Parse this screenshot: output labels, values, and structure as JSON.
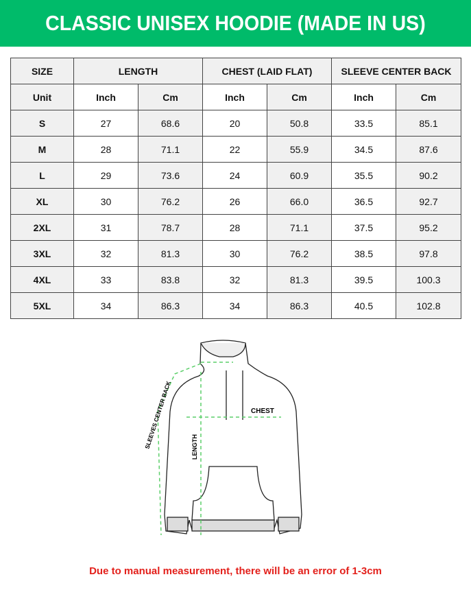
{
  "title": "CLASSIC UNISEX HOODIE (MADE IN US)",
  "colors": {
    "banner": "#00bb6a",
    "note": "#e3201b",
    "arrows": "#5ccf6a"
  },
  "table": {
    "headers": [
      "SIZE",
      "LENGTH",
      "CHEST (LAID FLAT)",
      "SLEEVE CENTER BACK"
    ],
    "units": [
      "Unit",
      "Inch",
      "Cm",
      "Inch",
      "Cm",
      "Inch",
      "Cm"
    ],
    "rows": [
      [
        "S",
        "27",
        "68.6",
        "20",
        "50.8",
        "33.5",
        "85.1"
      ],
      [
        "M",
        "28",
        "71.1",
        "22",
        "55.9",
        "34.5",
        "87.6"
      ],
      [
        "L",
        "29",
        "73.6",
        "24",
        "60.9",
        "35.5",
        "90.2"
      ],
      [
        "XL",
        "30",
        "76.2",
        "26",
        "66.0",
        "36.5",
        "92.7"
      ],
      [
        "2XL",
        "31",
        "78.7",
        "28",
        "71.1",
        "37.5",
        "95.2"
      ],
      [
        "3XL",
        "32",
        "81.3",
        "30",
        "76.2",
        "38.5",
        "97.8"
      ],
      [
        "4XL",
        "33",
        "83.8",
        "32",
        "81.3",
        "39.5",
        "100.3"
      ],
      [
        "5XL",
        "34",
        "86.3",
        "34",
        "86.3",
        "40.5",
        "102.8"
      ]
    ]
  },
  "figure": {
    "chest_label": "CHEST",
    "length_label": "LENGTH",
    "sleeve_label": "SLEEVES CENTER BACK"
  },
  "note": "Due to manual measurement, there will be an error of 1-3cm"
}
